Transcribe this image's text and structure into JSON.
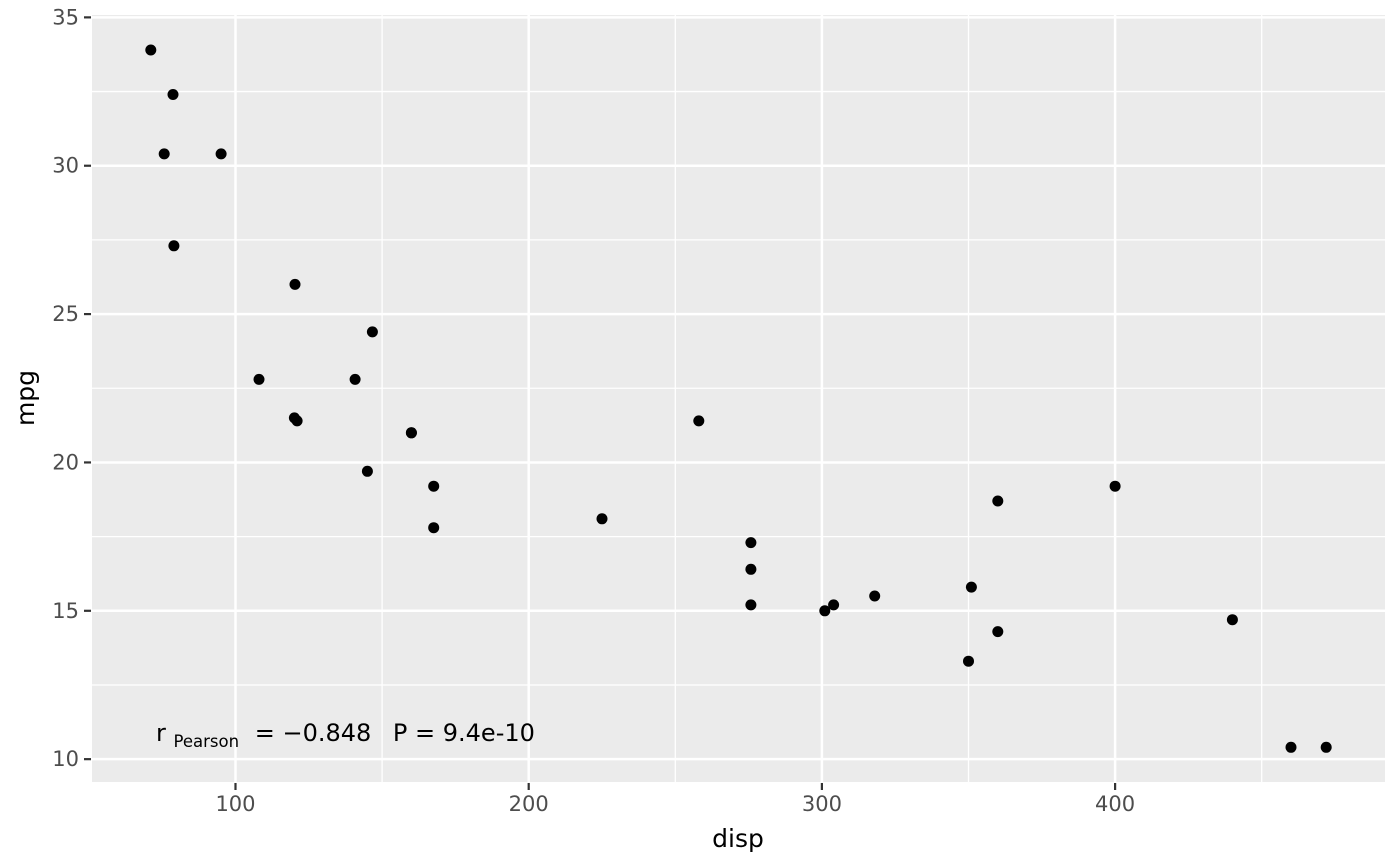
{
  "chart_data": {
    "type": "scatter",
    "title": "",
    "xlabel": "disp",
    "ylabel": "mpg",
    "xlim": [
      51.06,
      492.05
    ],
    "ylim": [
      9.23,
      35.08
    ],
    "xticks": [
      100,
      200,
      300,
      400
    ],
    "xticks_minor": [
      150,
      250,
      350,
      450
    ],
    "yticks": [
      10,
      15,
      20,
      25,
      30,
      35
    ],
    "yticks_minor": [
      12.5,
      17.5,
      22.5,
      27.5,
      32.5
    ],
    "grid": "major-and-minor-on",
    "legend": "none",
    "points": [
      [
        160.0,
        21.0
      ],
      [
        160.0,
        21.0
      ],
      [
        108.0,
        22.8
      ],
      [
        258.0,
        21.4
      ],
      [
        360.0,
        18.7
      ],
      [
        225.0,
        18.1
      ],
      [
        360.0,
        14.3
      ],
      [
        146.7,
        24.4
      ],
      [
        140.8,
        22.8
      ],
      [
        167.6,
        19.2
      ],
      [
        167.6,
        17.8
      ],
      [
        275.8,
        16.4
      ],
      [
        275.8,
        17.3
      ],
      [
        275.8,
        15.2
      ],
      [
        472.0,
        10.4
      ],
      [
        460.0,
        10.4
      ],
      [
        440.0,
        14.7
      ],
      [
        78.7,
        32.4
      ],
      [
        75.7,
        30.4
      ],
      [
        71.1,
        33.9
      ],
      [
        120.1,
        21.5
      ],
      [
        318.0,
        15.5
      ],
      [
        304.0,
        15.2
      ],
      [
        350.0,
        13.3
      ],
      [
        400.0,
        19.2
      ],
      [
        79.0,
        27.3
      ],
      [
        120.3,
        26.0
      ],
      [
        95.1,
        30.4
      ],
      [
        351.0,
        15.8
      ],
      [
        145.0,
        19.7
      ],
      [
        301.0,
        15.0
      ],
      [
        121.0,
        21.4
      ]
    ],
    "annotation": {
      "r_symbol": "r",
      "r_subscript": "Pearson",
      "r_value": "= −0.848",
      "p_value": "P = 9.4e-10",
      "x": 72.5,
      "y": 10.65
    },
    "colors": {
      "panel_bg": "#EBEBEB",
      "grid_major": "#FFFFFF",
      "grid_minor": "#FFFFFF",
      "point": "#000000",
      "tick_text": "#4D4D4D",
      "tick_mark": "#333333",
      "axis_title_text": "#000000",
      "annotation_text": "#000000",
      "outer_bg": "#FFFFFF"
    }
  }
}
